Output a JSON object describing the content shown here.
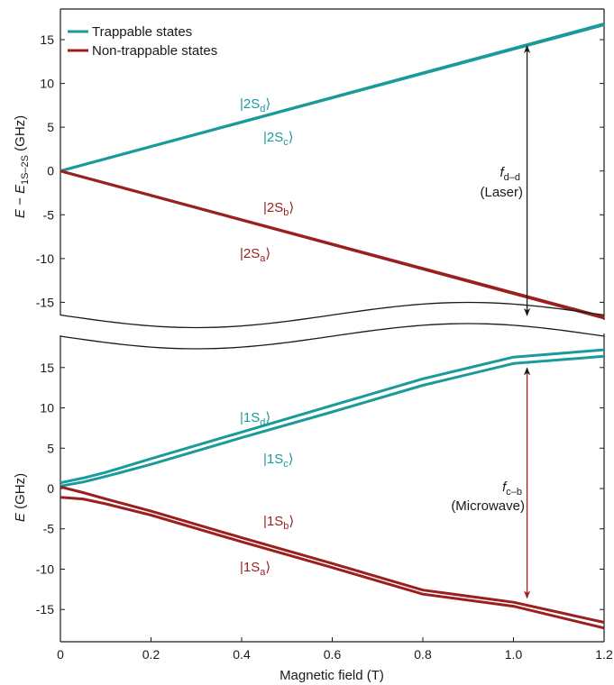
{
  "colors": {
    "trappable": "#1a9a9a",
    "non_trappable": "#9a2020",
    "axis": "#1a1a1a"
  },
  "legend": {
    "trappable": "Trappable states",
    "non_trappable": "Non-trappable states"
  },
  "ylabels": {
    "top_prefix": "E − E",
    "top_sub": "1S–2S",
    "top_suffix": " (GHz)",
    "bottom_prefix": "E",
    "bottom_suffix": " (GHz)"
  },
  "xlabel": "Magnetic field (T)",
  "state_labels": {
    "2Sd": {
      "base": "2S",
      "sub": "d"
    },
    "2Sc": {
      "base": "2S",
      "sub": "c"
    },
    "2Sb": {
      "base": "2S",
      "sub": "b"
    },
    "2Sa": {
      "base": "2S",
      "sub": "a"
    },
    "1Sd": {
      "base": "1S",
      "sub": "d"
    },
    "1Sc": {
      "base": "1S",
      "sub": "c"
    },
    "1Sb": {
      "base": "1S",
      "sub": "b"
    },
    "1Sa": {
      "base": "1S",
      "sub": "a"
    }
  },
  "annotations": {
    "laser": {
      "sym": "f",
      "sub": "d–d",
      "desc": "(Laser)"
    },
    "microwave": {
      "sym": "f",
      "sub": "c–b",
      "desc": "(Microwave)"
    }
  },
  "chart_data": [
    {
      "type": "line",
      "panel": "top",
      "ylabel": "E − E1S–2S (GHz)",
      "xlim": [
        0,
        1.2
      ],
      "ylim": [
        -16.5,
        18.5
      ],
      "yticks": [
        -15,
        -10,
        -5,
        0,
        5,
        10,
        15
      ],
      "series": [
        {
          "name": "Trappable states",
          "state": "2Sd",
          "x": [
            0,
            1.2
          ],
          "y": [
            0,
            16.8
          ]
        },
        {
          "name": "Trappable states",
          "state": "2Sc",
          "x": [
            0,
            1.2
          ],
          "y": [
            0,
            16.7
          ]
        },
        {
          "name": "Non-trappable states",
          "state": "2Sb",
          "x": [
            0,
            1.2
          ],
          "y": [
            0,
            -16.7
          ]
        },
        {
          "name": "Non-trappable states",
          "state": "2Sa",
          "x": [
            0,
            1.2
          ],
          "y": [
            0,
            -16.8
          ]
        }
      ],
      "arrow": {
        "label": "f d–d (Laser)",
        "x": 1.03,
        "from_y": -16.5,
        "to_y": 14.5
      }
    },
    {
      "type": "line",
      "panel": "bottom",
      "xlabel": "Magnetic field (T)",
      "ylabel": "E (GHz)",
      "xlim": [
        0,
        1.2
      ],
      "ylim": [
        -19,
        19
      ],
      "xticks": [
        0,
        0.2,
        0.4,
        0.6,
        0.8,
        1.0,
        1.2
      ],
      "yticks": [
        -15,
        -10,
        -5,
        0,
        5,
        10,
        15
      ],
      "series": [
        {
          "name": "Trappable states",
          "state": "1Sd",
          "x": [
            0,
            0.05,
            0.1,
            0.2,
            0.4,
            0.6,
            0.8,
            1.0,
            1.2
          ],
          "y": [
            0.7,
            1.3,
            2.0,
            3.7,
            7.0,
            10.3,
            13.6,
            16.3,
            17.2
          ]
        },
        {
          "name": "Trappable states",
          "state": "1Sc",
          "x": [
            0,
            0.05,
            0.1,
            0.2,
            0.4,
            0.6,
            0.8,
            1.0,
            1.2
          ],
          "y": [
            0.3,
            0.8,
            1.5,
            3.0,
            6.3,
            9.5,
            12.8,
            15.5,
            16.4
          ]
        },
        {
          "name": "Non-trappable states",
          "state": "1Sb",
          "x": [
            0,
            0.05,
            0.1,
            0.2,
            0.4,
            0.6,
            0.8,
            1.0,
            1.2
          ],
          "y": [
            0.2,
            -0.5,
            -1.3,
            -2.8,
            -6.1,
            -9.3,
            -12.6,
            -14.1,
            -16.6
          ]
        },
        {
          "name": "Non-trappable states",
          "state": "1Sa",
          "x": [
            0,
            0.05,
            0.1,
            0.2,
            0.4,
            0.6,
            0.8,
            1.0,
            1.2
          ],
          "y": [
            -1.1,
            -1.3,
            -1.9,
            -3.3,
            -6.6,
            -9.8,
            -13.1,
            -14.6,
            -17.3
          ]
        }
      ],
      "arrow": {
        "label": "f c–b (Microwave)",
        "x": 1.03,
        "from_y": 14.5,
        "to_y": -13.8
      }
    }
  ]
}
